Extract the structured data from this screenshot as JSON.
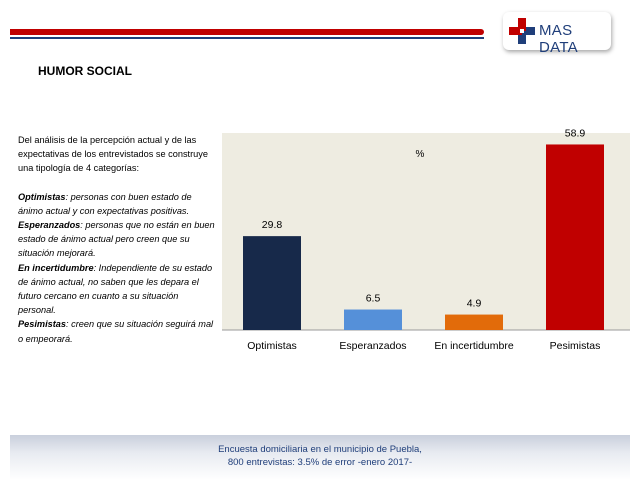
{
  "header": {
    "brand": "MAS DATA",
    "colors": {
      "red": "#c00000",
      "blue": "#1f3e7a"
    }
  },
  "page_title": "HUMOR SOCIAL",
  "description": {
    "intro": "Del análisis de la percepción actual y de las expectativas de los entrevistados se construye una tipología de 4 categorías:",
    "items": [
      {
        "term": "Optimistas",
        "text": ": personas con buen estado de ánimo actual y con expectativas positivas."
      },
      {
        "term": "Esperanzados",
        "text": ": personas que no están en buen estado de ánimo actual pero creen que su situación mejorará."
      },
      {
        "term": "En incertidumbre",
        "text": ": Independiente de su estado de ánimo actual, no saben que les depara el futuro cercano en cuanto a su situación personal."
      },
      {
        "term": "Pesimistas",
        "text": ": creen que su situación seguirá mal o empeorará."
      }
    ]
  },
  "chart_data": {
    "type": "bar",
    "unit_label": "%",
    "categories": [
      "Optimistas",
      "Esperanzados",
      "En incertidumbre",
      "Pesimistas"
    ],
    "values": [
      29.8,
      6.5,
      4.9,
      58.9
    ],
    "value_labels": [
      "29.8",
      "6.5",
      "4.9",
      "58.9"
    ],
    "colors": [
      "#17294a",
      "#5590d9",
      "#e26b0a",
      "#c00000"
    ],
    "ylim": [
      0,
      60
    ],
    "background": "#eeece1",
    "grid": false
  },
  "footer": {
    "line1": "Encuesta domiciliaria en el municipio de Puebla,",
    "line2": "800 entrevistas: 3.5% de error -enero 2017-"
  }
}
